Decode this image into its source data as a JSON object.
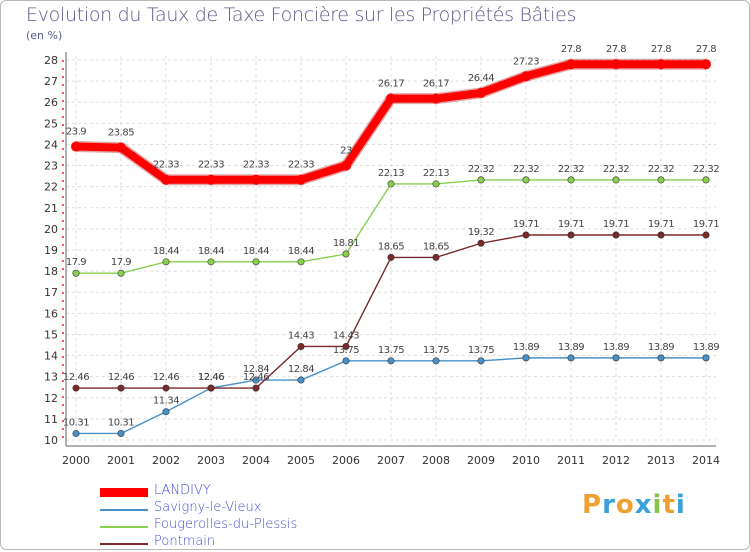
{
  "title": "Evolution du Taux de Taxe Foncière sur les Propriétés Bâties",
  "unit_label": "(en %)",
  "logo": {
    "letters": [
      "P",
      "r",
      "o",
      "x",
      "i",
      "t",
      "i"
    ],
    "colors": [
      "#f0a030",
      "#3aa0d8",
      "#f0a030",
      "#3aa0d8",
      "#8bc34a",
      "#f0a030",
      "#3aa0d8"
    ]
  },
  "chart_data": {
    "type": "line",
    "x": [
      "2000",
      "2001",
      "2002",
      "2003",
      "2004",
      "2005",
      "2006",
      "2007",
      "2008",
      "2009",
      "2010",
      "2011",
      "2012",
      "2013",
      "2014"
    ],
    "ylim": [
      10,
      28
    ],
    "yticks": [
      "10",
      "11",
      "12",
      "13",
      "14",
      "15",
      "16",
      "17",
      "18",
      "19",
      "20",
      "21",
      "22",
      "23",
      "24",
      "25",
      "26",
      "27",
      "28"
    ],
    "grid": true,
    "series": [
      {
        "name": "LANDIVY",
        "color": "#ff0000",
        "emphasis": true,
        "values": [
          23.9,
          23.85,
          22.33,
          22.33,
          22.33,
          22.33,
          23.0,
          26.17,
          26.17,
          26.44,
          27.23,
          27.8,
          27.8,
          27.8,
          27.8
        ],
        "labels": [
          "23.9",
          "23.85",
          "22.33",
          "22.33",
          "22.33",
          "22.33",
          "23",
          "26.17",
          "26.17",
          "26.44",
          "27.23",
          "27.8",
          "27.8",
          "27.8",
          "27.8"
        ]
      },
      {
        "name": "Savigny-le-Vieux",
        "color": "#4a90c8",
        "values": [
          10.31,
          10.31,
          11.34,
          12.46,
          12.84,
          12.84,
          13.75,
          13.75,
          13.75,
          13.75,
          13.89,
          13.89,
          13.89,
          13.89,
          13.89
        ],
        "labels": [
          "10.31",
          "10.31",
          "11.34",
          "12.46",
          "12.84",
          "12.84",
          "13.75",
          "13.75",
          "13.75",
          "13.75",
          "13.89",
          "13.89",
          "13.89",
          "13.89",
          "13.89"
        ]
      },
      {
        "name": "Fougerolles-du-Plessis",
        "color": "#88d050",
        "values": [
          17.9,
          17.9,
          18.44,
          18.44,
          18.44,
          18.44,
          18.81,
          22.13,
          22.13,
          22.32,
          22.32,
          22.32,
          22.32,
          22.32,
          22.32
        ],
        "labels": [
          "17.9",
          "17.9",
          "18.44",
          "18.44",
          "18.44",
          "18.44",
          "18.81",
          "22.13",
          "22.13",
          "22.32",
          "22.32",
          "22.32",
          "22.32",
          "22.32",
          "22.32"
        ]
      },
      {
        "name": "Pontmain",
        "color": "#7a2a2a",
        "values": [
          12.46,
          12.46,
          12.46,
          12.46,
          12.46,
          14.43,
          14.43,
          18.65,
          18.65,
          19.32,
          19.71,
          19.71,
          19.71,
          19.71,
          19.71
        ],
        "labels": [
          "12.46",
          "12.46",
          "12.46",
          "12.46",
          "12.46",
          "14.43",
          "14.43",
          "18.65",
          "18.65",
          "19.32",
          "19.71",
          "19.71",
          "19.71",
          "19.71",
          "19.71"
        ]
      }
    ]
  }
}
